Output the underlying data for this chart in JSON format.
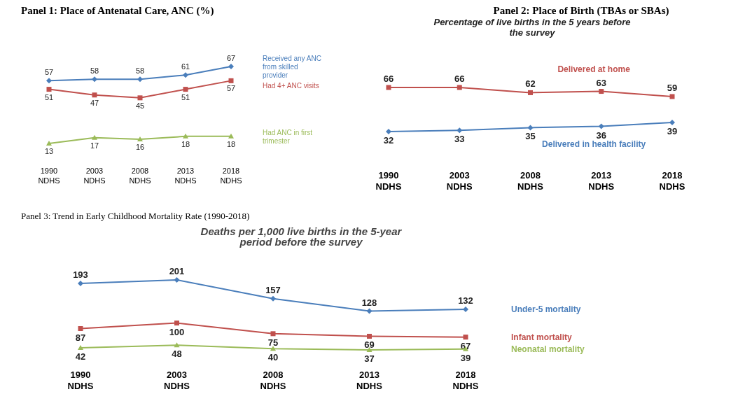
{
  "chart_data": [
    {
      "type": "line",
      "title": "Panel 1: Place of Antenatal Care, ANC (%)",
      "categories": [
        "1990 NDHS",
        "2003 NDHS",
        "2008 NDHS",
        "2013 NDHS",
        "2018 NDHS"
      ],
      "data_labels": true,
      "legend": "right",
      "series": [
        {
          "name": "Received any ANC from skilled provider",
          "color": "#4a7ebb",
          "marker": "diamond",
          "values": [
            57,
            58,
            58,
            61,
            67
          ]
        },
        {
          "name": "Had 4+ ANC visits",
          "color": "#c0504d",
          "marker": "square",
          "values": [
            51,
            47,
            45,
            51,
            57
          ]
        },
        {
          "name": "Had ANC in first trimester",
          "color": "#9bbb59",
          "marker": "triangle",
          "values": [
            13,
            17,
            16,
            18,
            18
          ]
        }
      ]
    },
    {
      "type": "line",
      "title": "Panel 2: Place of Birth (TBAs or SBAs)",
      "subtitle": "Percentage of live births in the 5 years before the survey",
      "categories": [
        "1990 NDHS",
        "2003 NDHS",
        "2008 NDHS",
        "2013 NDHS",
        "2018 NDHS"
      ],
      "data_labels": true,
      "series": [
        {
          "name": "Delivered at home",
          "color": "#c0504d",
          "marker": "square",
          "values": [
            66,
            66,
            62,
            63,
            59
          ]
        },
        {
          "name": "Delivered in health facility",
          "color": "#4a7ebb",
          "marker": "diamond",
          "values": [
            32,
            33,
            35,
            36,
            39
          ]
        }
      ]
    },
    {
      "type": "line",
      "title": "Panel 3: Trend in Early Childhood Mortality Rate (1990-2018)",
      "subtitle": "Deaths per 1,000 live births in the 5-year period before the survey",
      "categories": [
        "1990 NDHS",
        "2003 NDHS",
        "2008 NDHS",
        "2013 NDHS",
        "2018 NDHS"
      ],
      "data_labels": true,
      "legend": "right",
      "series": [
        {
          "name": "Under-5 mortality",
          "color": "#4a7ebb",
          "marker": "diamond",
          "values": [
            193,
            201,
            157,
            128,
            132
          ]
        },
        {
          "name": "Infant mortality",
          "color": "#c0504d",
          "marker": "square",
          "values": [
            87,
            100,
            75,
            69,
            67
          ]
        },
        {
          "name": "Neonatal mortality",
          "color": "#9bbb59",
          "marker": "triangle",
          "values": [
            42,
            48,
            40,
            37,
            39
          ]
        }
      ]
    }
  ]
}
